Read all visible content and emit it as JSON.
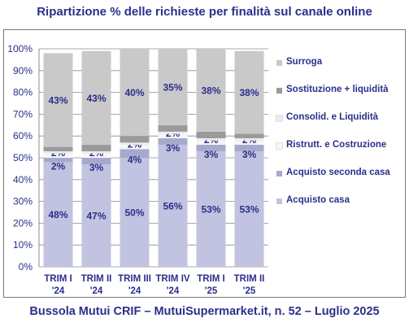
{
  "title": "Ripartizione % delle richieste per finalità sul canale online",
  "footer": "Bussola Mutui CRIF – MutuiSupermarket.it, n. 52 – Luglio 2025",
  "chart_data": {
    "type": "bar",
    "stacked": true,
    "categories": [
      [
        "TRIM I",
        "'24"
      ],
      [
        "TRIM II",
        "'24"
      ],
      [
        "TRIM III",
        "'24"
      ],
      [
        "TRIM IV",
        "'24"
      ],
      [
        "TRIM I",
        "'25"
      ],
      [
        "TRIM II",
        "'25"
      ]
    ],
    "ylim": [
      0,
      100
    ],
    "yticks": [
      "0%",
      "10%",
      "20%",
      "30%",
      "40%",
      "50%",
      "60%",
      "70%",
      "80%",
      "90%",
      "100%"
    ],
    "grid": true,
    "legend_position": "right",
    "series": [
      {
        "name": "Acquisto casa",
        "color": "#c2c3e0",
        "values": [
          48,
          47,
          50,
          56,
          53,
          53
        ],
        "labels": [
          "48%",
          "47%",
          "50%",
          "56%",
          "53%",
          "53%"
        ]
      },
      {
        "name": "Acquisto seconda casa",
        "color": "#a7a9cc",
        "values": [
          2,
          3,
          4,
          3,
          3,
          3
        ],
        "labels": [
          "2%",
          "3%",
          "4%",
          "3%",
          "3%",
          "3%"
        ]
      },
      {
        "name": "Ristrutt. e Costruzione",
        "color": "#f6f6f6",
        "values": [
          2,
          2,
          2,
          2,
          2,
          2
        ],
        "labels": [
          "2%",
          "2%",
          "2%",
          "2%",
          "2%",
          "2%"
        ]
      },
      {
        "name": "Consolid. e Liquidità",
        "color": "#ebebeb",
        "values": [
          1,
          1,
          1,
          1,
          1,
          1
        ],
        "labels": [
          "",
          "",
          "",
          "",
          "",
          ""
        ]
      },
      {
        "name": "Sostituzione + liquidità",
        "color": "#9a9a9a",
        "values": [
          2,
          3,
          3,
          3,
          3,
          2
        ],
        "labels": [
          "2%",
          "3%",
          "3%",
          "3%",
          "3%",
          "2%"
        ]
      },
      {
        "name": "Surroga",
        "color": "#c9c9c9",
        "values": [
          43,
          43,
          40,
          35,
          38,
          38
        ],
        "labels": [
          "43%",
          "43%",
          "40%",
          "35%",
          "38%",
          "38%"
        ]
      }
    ],
    "legend_order": [
      "Surroga",
      "Sostituzione + liquidità",
      "Consolid. e Liquidità",
      "Ristrutt. e Costruzione",
      "Acquisto seconda casa",
      "Acquisto casa"
    ]
  }
}
